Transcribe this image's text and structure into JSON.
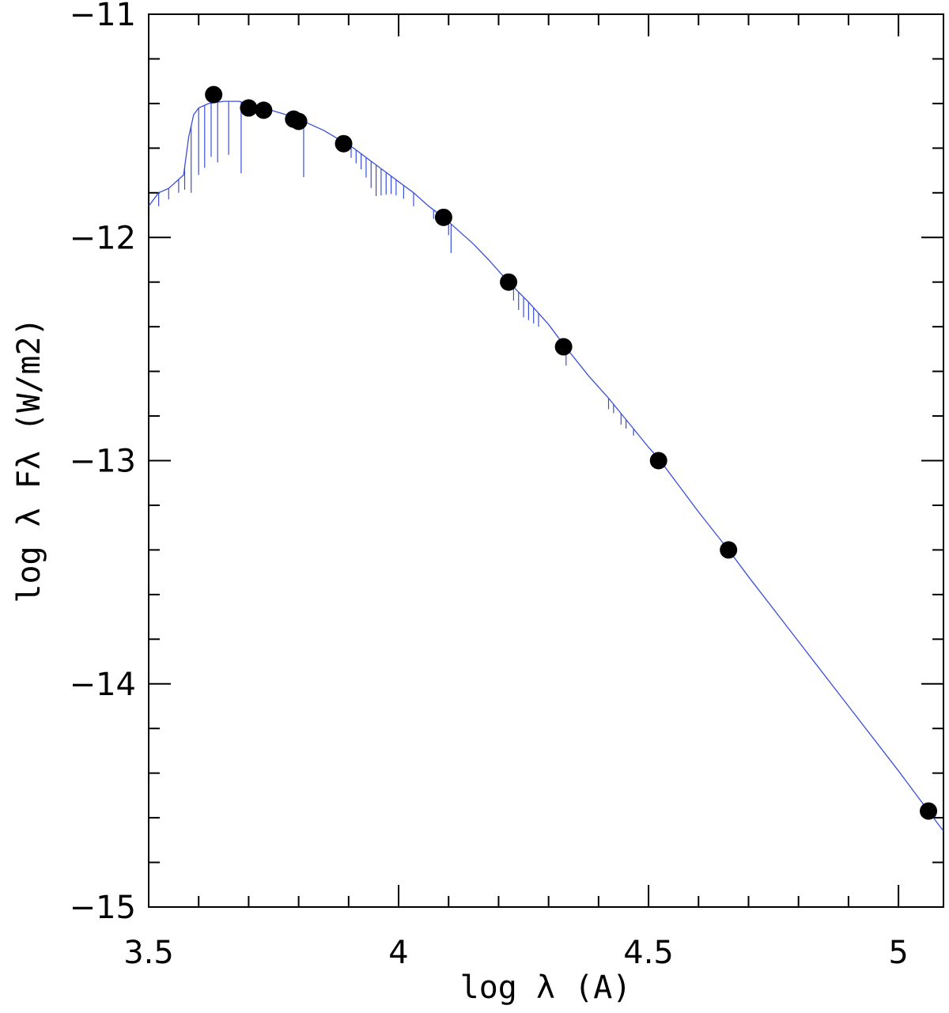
{
  "chart_data": {
    "type": "scatter",
    "title": "",
    "xlabel": "log λ (A)",
    "ylabel": "log λ Fλ (W/m2)",
    "xlim": [
      3.5,
      5.09
    ],
    "ylim": [
      -15,
      -11
    ],
    "x_ticks": [
      3.5,
      4,
      4.5,
      5
    ],
    "x_tick_labels": [
      "3.5",
      "4",
      "4.5",
      "5"
    ],
    "y_ticks": [
      -11,
      -12,
      -13,
      -14,
      -15
    ],
    "y_tick_labels": [
      "−11",
      "−12",
      "−13",
      "−14",
      "−15"
    ],
    "grid": false,
    "legend": "none",
    "colors": {
      "points": "#000000",
      "model": "#3a4fd8"
    },
    "points": [
      {
        "x": 3.63,
        "y": -11.36
      },
      {
        "x": 3.7,
        "y": -11.42
      },
      {
        "x": 3.73,
        "y": -11.43
      },
      {
        "x": 3.79,
        "y": -11.47
      },
      {
        "x": 3.8,
        "y": -11.48
      },
      {
        "x": 3.89,
        "y": -11.58
      },
      {
        "x": 4.09,
        "y": -11.91
      },
      {
        "x": 4.22,
        "y": -12.2
      },
      {
        "x": 4.33,
        "y": -12.49
      },
      {
        "x": 4.52,
        "y": -13.0
      },
      {
        "x": 4.66,
        "y": -13.4
      },
      {
        "x": 5.06,
        "y": -14.57
      }
    ],
    "model_curve": [
      [
        3.5,
        -11.86
      ],
      [
        3.52,
        -11.8
      ],
      [
        3.54,
        -11.78
      ],
      [
        3.56,
        -11.74
      ],
      [
        3.57,
        -11.72
      ],
      [
        3.58,
        -11.55
      ],
      [
        3.59,
        -11.45
      ],
      [
        3.6,
        -11.42
      ],
      [
        3.62,
        -11.4
      ],
      [
        3.65,
        -11.39
      ],
      [
        3.68,
        -11.39
      ],
      [
        3.7,
        -11.4
      ],
      [
        3.73,
        -11.42
      ],
      [
        3.76,
        -11.44
      ],
      [
        3.79,
        -11.46
      ],
      [
        3.82,
        -11.49
      ],
      [
        3.85,
        -11.52
      ],
      [
        3.88,
        -11.56
      ],
      [
        3.91,
        -11.6
      ],
      [
        3.94,
        -11.65
      ],
      [
        3.97,
        -11.7
      ],
      [
        4.0,
        -11.75
      ],
      [
        4.03,
        -11.8
      ],
      [
        4.06,
        -11.86
      ],
      [
        4.09,
        -11.91
      ],
      [
        4.12,
        -11.97
      ],
      [
        4.15,
        -12.03
      ],
      [
        4.18,
        -12.1
      ],
      [
        4.22,
        -12.2
      ],
      [
        4.26,
        -12.29
      ],
      [
        4.3,
        -12.39
      ],
      [
        4.33,
        -12.48
      ],
      [
        4.38,
        -12.62
      ],
      [
        4.42,
        -12.72
      ],
      [
        4.46,
        -12.83
      ],
      [
        4.5,
        -12.94
      ],
      [
        4.52,
        -12.99
      ],
      [
        4.56,
        -13.11
      ],
      [
        4.6,
        -13.23
      ],
      [
        4.66,
        -13.4
      ],
      [
        4.7,
        -13.52
      ],
      [
        4.8,
        -13.81
      ],
      [
        4.9,
        -14.1
      ],
      [
        5.0,
        -14.39
      ],
      [
        5.06,
        -14.57
      ],
      [
        5.09,
        -14.66
      ]
    ],
    "absorption_lines": [
      [
        3.52,
        0.06
      ],
      [
        3.54,
        0.05
      ],
      [
        3.56,
        0.06
      ],
      [
        3.572,
        0.1
      ],
      [
        3.585,
        0.3
      ],
      [
        3.6,
        0.3
      ],
      [
        3.612,
        0.28
      ],
      [
        3.625,
        0.24
      ],
      [
        3.638,
        0.27
      ],
      [
        3.66,
        0.24
      ],
      [
        3.685,
        0.32
      ],
      [
        3.81,
        0.25
      ],
      [
        3.905,
        0.05
      ],
      [
        3.915,
        0.06
      ],
      [
        3.925,
        0.07
      ],
      [
        3.935,
        0.09
      ],
      [
        3.945,
        0.12
      ],
      [
        3.955,
        0.14
      ],
      [
        3.965,
        0.12
      ],
      [
        3.975,
        0.1
      ],
      [
        3.985,
        0.08
      ],
      [
        3.995,
        0.07
      ],
      [
        4.01,
        0.06
      ],
      [
        4.03,
        0.06
      ],
      [
        4.07,
        0.04
      ],
      [
        4.1,
        0.06
      ],
      [
        4.105,
        0.13
      ],
      [
        4.23,
        0.06
      ],
      [
        4.24,
        0.08
      ],
      [
        4.25,
        0.09
      ],
      [
        4.26,
        0.08
      ],
      [
        4.27,
        0.07
      ],
      [
        4.28,
        0.06
      ],
      [
        4.335,
        0.08
      ],
      [
        4.42,
        0.05
      ],
      [
        4.43,
        0.04
      ],
      [
        4.445,
        0.05
      ],
      [
        4.455,
        0.04
      ],
      [
        4.47,
        0.03
      ]
    ]
  }
}
